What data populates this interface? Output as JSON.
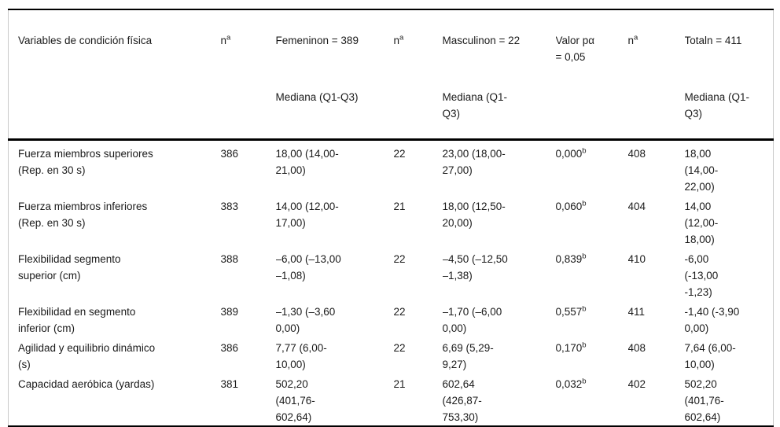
{
  "table": {
    "header": {
      "variables": "Variables de condición física",
      "n_label": "n",
      "n_sup": "a",
      "femenino": {
        "title": "Femeninon = 389",
        "median": "Mediana (Q1-Q3)"
      },
      "masculino": {
        "title": "Masculinon = 22",
        "median": "Mediana (Q1-\nQ3)"
      },
      "valor_p": {
        "title": "Valor pα\n= 0,05"
      },
      "total": {
        "title": "Totaln = 411",
        "median": "Mediana (Q1-\nQ3)"
      }
    },
    "rows": [
      {
        "variable": "Fuerza miembros superiores\n(Rep. en 30 s)",
        "n_fem": "386",
        "femenino": "18,00 (14,00-\n21,00)",
        "n_masc": "22",
        "masculino": "23,00 (18,00-\n27,00)",
        "p_value": "0,000",
        "p_sup": "b",
        "n_total": "408",
        "total": "18,00\n(14,00-\n22,00)"
      },
      {
        "variable": "Fuerza miembros inferiores\n(Rep. en 30 s)",
        "n_fem": "383",
        "femenino": "14,00 (12,00-\n17,00)",
        "n_masc": "21",
        "masculino": "18,00 (12,50-\n20,00)",
        "p_value": "0,060",
        "p_sup": "b",
        "n_total": "404",
        "total": "14,00\n(12,00-\n18,00)"
      },
      {
        "variable": "Flexibilidad segmento\nsuperior (cm)",
        "n_fem": "388",
        "femenino": "–6,00 (–13,00\n–1,08)",
        "n_masc": "22",
        "masculino": "–4,50 (–12,50\n–1,38)",
        "p_value": "0,839",
        "p_sup": "b",
        "n_total": "410",
        "total": "-6,00\n(-13,00\n-1,23)"
      },
      {
        "variable": "Flexibilidad en segmento\ninferior (cm)",
        "n_fem": "389",
        "femenino": "–1,30 (–3,60\n0,00)",
        "n_masc": "22",
        "masculino": "–1,70 (–6,00\n0,00)",
        "p_value": "0,557",
        "p_sup": "b",
        "n_total": "411",
        "total": "-1,40 (-3,90\n0,00)"
      },
      {
        "variable": "Agilidad y equilibrio dinámico\n(s)",
        "n_fem": "386",
        "femenino": "7,77 (6,00-\n10,00)",
        "n_masc": "22",
        "masculino": "6,69 (5,29-\n9,27)",
        "p_value": "0,170",
        "p_sup": "b",
        "n_total": "408",
        "total": "7,64 (6,00-\n10,00)"
      },
      {
        "variable": "Capacidad aeróbica (yardas)",
        "n_fem": "381",
        "femenino": "502,20\n(401,76-\n602,64)",
        "n_masc": "21",
        "masculino": "602,64\n(426,87-\n753,30)",
        "p_value": "0,032",
        "p_sup": "b",
        "n_total": "402",
        "total": "502,20\n(401,76-\n602,64)"
      }
    ]
  }
}
